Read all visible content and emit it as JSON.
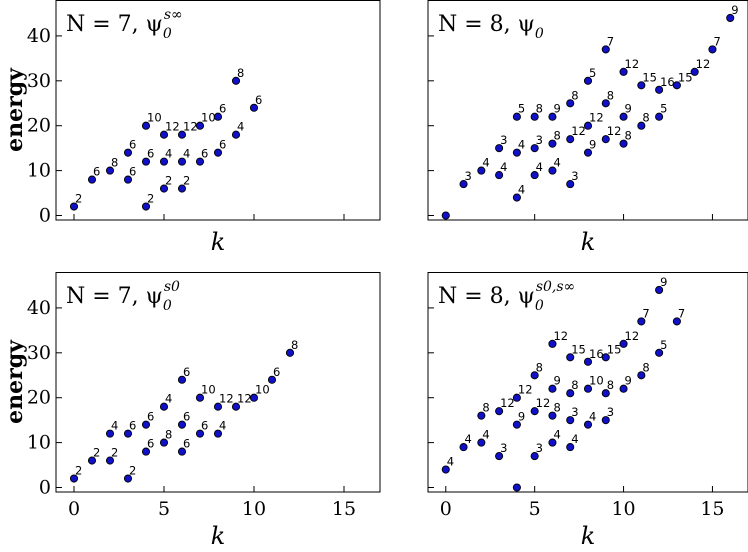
{
  "chart_data": [
    {
      "type": "scatter",
      "title": "N = 7, ψ0^{s∞}",
      "title_main": "N = 7, ψ",
      "title_sub": "0",
      "title_sup": "s∞",
      "xlabel": "k",
      "ylabel": "energy",
      "xlim": [
        -1,
        17
      ],
      "ylim": [
        -1,
        48
      ],
      "xticks": [],
      "yticks": [
        0,
        10,
        20,
        30,
        40
      ],
      "points": [
        {
          "x": 0,
          "y": 2,
          "label": "2"
        },
        {
          "x": 1,
          "y": 8,
          "label": "6"
        },
        {
          "x": 2,
          "y": 10,
          "label": "8"
        },
        {
          "x": 3,
          "y": 8,
          "label": "6"
        },
        {
          "x": 3,
          "y": 14,
          "label": "6"
        },
        {
          "x": 4,
          "y": 2,
          "label": "2"
        },
        {
          "x": 4,
          "y": 12,
          "label": "6"
        },
        {
          "x": 4,
          "y": 20,
          "label": "10"
        },
        {
          "x": 5,
          "y": 6,
          "label": "2"
        },
        {
          "x": 5,
          "y": 12,
          "label": "4"
        },
        {
          "x": 5,
          "y": 18,
          "label": "12"
        },
        {
          "x": 6,
          "y": 6,
          "label": "2"
        },
        {
          "x": 6,
          "y": 12,
          "label": "4"
        },
        {
          "x": 6,
          "y": 18,
          "label": "12"
        },
        {
          "x": 7,
          "y": 12,
          "label": "6"
        },
        {
          "x": 7,
          "y": 20,
          "label": "10"
        },
        {
          "x": 8,
          "y": 14,
          "label": "6"
        },
        {
          "x": 8,
          "y": 22,
          "label": "6"
        },
        {
          "x": 9,
          "y": 18,
          "label": "4"
        },
        {
          "x": 9,
          "y": 30,
          "label": "8"
        },
        {
          "x": 10,
          "y": 24,
          "label": "6"
        }
      ]
    },
    {
      "type": "scatter",
      "title": "N = 8, ψ0",
      "title_main": "N = 8, ψ",
      "title_sub": "0",
      "title_sup": "",
      "xlabel": "k",
      "ylabel": "",
      "xlim": [
        -1,
        17
      ],
      "ylim": [
        -1,
        48
      ],
      "xticks": [],
      "yticks": [],
      "points": [
        {
          "x": 0,
          "y": 0,
          "label": ""
        },
        {
          "x": 1,
          "y": 7,
          "label": "3"
        },
        {
          "x": 2,
          "y": 10,
          "label": "4"
        },
        {
          "x": 3,
          "y": 9,
          "label": "4"
        },
        {
          "x": 3,
          "y": 15,
          "label": "3"
        },
        {
          "x": 4,
          "y": 4,
          "label": "4"
        },
        {
          "x": 4,
          "y": 14,
          "label": "4"
        },
        {
          "x": 4,
          "y": 22,
          "label": "5"
        },
        {
          "x": 5,
          "y": 9,
          "label": "4"
        },
        {
          "x": 5,
          "y": 15,
          "label": "3"
        },
        {
          "x": 5,
          "y": 22,
          "label": "8"
        },
        {
          "x": 6,
          "y": 10,
          "label": "4"
        },
        {
          "x": 6,
          "y": 16,
          "label": "8"
        },
        {
          "x": 6,
          "y": 22,
          "label": "9"
        },
        {
          "x": 7,
          "y": 7,
          "label": "3"
        },
        {
          "x": 7,
          "y": 17,
          "label": "12"
        },
        {
          "x": 7,
          "y": 25,
          "label": "8"
        },
        {
          "x": 8,
          "y": 14,
          "label": "9"
        },
        {
          "x": 8,
          "y": 20,
          "label": "12"
        },
        {
          "x": 8,
          "y": 30,
          "label": "5"
        },
        {
          "x": 9,
          "y": 17,
          "label": "12"
        },
        {
          "x": 9,
          "y": 25,
          "label": "8"
        },
        {
          "x": 9,
          "y": 37,
          "label": "7"
        },
        {
          "x": 10,
          "y": 16,
          "label": "8"
        },
        {
          "x": 10,
          "y": 22,
          "label": "9"
        },
        {
          "x": 10,
          "y": 32,
          "label": "12"
        },
        {
          "x": 11,
          "y": 20,
          "label": "8"
        },
        {
          "x": 11,
          "y": 29,
          "label": "15"
        },
        {
          "x": 12,
          "y": 22,
          "label": "5"
        },
        {
          "x": 12,
          "y": 28,
          "label": "16"
        },
        {
          "x": 13,
          "y": 29,
          "label": "15"
        },
        {
          "x": 14,
          "y": 32,
          "label": "12"
        },
        {
          "x": 15,
          "y": 37,
          "label": "7"
        },
        {
          "x": 16,
          "y": 44,
          "label": "9"
        }
      ]
    },
    {
      "type": "scatter",
      "title": "N = 7, ψ0^{s0}",
      "title_main": "N = 7, ψ",
      "title_sub": "0",
      "title_sup": "s0",
      "xlabel": "k",
      "ylabel": "energy",
      "xlim": [
        -1,
        17
      ],
      "ylim": [
        -1,
        48
      ],
      "xticks": [
        0,
        5,
        10,
        15
      ],
      "yticks": [
        0,
        10,
        20,
        30,
        40
      ],
      "points": [
        {
          "x": 0,
          "y": 2,
          "label": "2"
        },
        {
          "x": 1,
          "y": 6,
          "label": "2"
        },
        {
          "x": 2,
          "y": 6,
          "label": "2"
        },
        {
          "x": 2,
          "y": 12,
          "label": "4"
        },
        {
          "x": 3,
          "y": 2,
          "label": "2"
        },
        {
          "x": 3,
          "y": 12,
          "label": "6"
        },
        {
          "x": 4,
          "y": 8,
          "label": "6"
        },
        {
          "x": 4,
          "y": 14,
          "label": "6"
        },
        {
          "x": 5,
          "y": 10,
          "label": "8"
        },
        {
          "x": 5,
          "y": 18,
          "label": "4"
        },
        {
          "x": 6,
          "y": 8,
          "label": "6"
        },
        {
          "x": 6,
          "y": 14,
          "label": "6"
        },
        {
          "x": 6,
          "y": 24,
          "label": "6"
        },
        {
          "x": 7,
          "y": 12,
          "label": "6"
        },
        {
          "x": 7,
          "y": 20,
          "label": "10"
        },
        {
          "x": 8,
          "y": 12,
          "label": "4"
        },
        {
          "x": 8,
          "y": 18,
          "label": "12"
        },
        {
          "x": 9,
          "y": 18,
          "label": "12"
        },
        {
          "x": 10,
          "y": 20,
          "label": "10"
        },
        {
          "x": 11,
          "y": 24,
          "label": "6"
        },
        {
          "x": 12,
          "y": 30,
          "label": "8"
        }
      ]
    },
    {
      "type": "scatter",
      "title": "N = 8, ψ0^{s0,s∞}",
      "title_main": "N = 8, ψ",
      "title_sub": "0",
      "title_sup": "s0,s∞",
      "xlabel": "k",
      "ylabel": "",
      "xlim": [
        -1,
        17
      ],
      "ylim": [
        -1,
        48
      ],
      "xticks": [
        0,
        5,
        10,
        15
      ],
      "yticks": [],
      "points": [
        {
          "x": 0,
          "y": 4,
          "label": "4"
        },
        {
          "x": 1,
          "y": 9,
          "label": "4"
        },
        {
          "x": 2,
          "y": 10,
          "label": "4"
        },
        {
          "x": 2,
          "y": 16,
          "label": "8"
        },
        {
          "x": 3,
          "y": 7,
          "label": "3"
        },
        {
          "x": 3,
          "y": 17,
          "label": "12"
        },
        {
          "x": 4,
          "y": 0,
          "label": ""
        },
        {
          "x": 4,
          "y": 14,
          "label": "9"
        },
        {
          "x": 4,
          "y": 20,
          "label": "12"
        },
        {
          "x": 5,
          "y": 7,
          "label": "3"
        },
        {
          "x": 5,
          "y": 17,
          "label": "12"
        },
        {
          "x": 5,
          "y": 25,
          "label": "8"
        },
        {
          "x": 6,
          "y": 10,
          "label": "4"
        },
        {
          "x": 6,
          "y": 16,
          "label": "8"
        },
        {
          "x": 6,
          "y": 22,
          "label": "9"
        },
        {
          "x": 6,
          "y": 32,
          "label": "12"
        },
        {
          "x": 7,
          "y": 9,
          "label": "4"
        },
        {
          "x": 7,
          "y": 15,
          "label": "3"
        },
        {
          "x": 7,
          "y": 21,
          "label": "8"
        },
        {
          "x": 7,
          "y": 29,
          "label": "15"
        },
        {
          "x": 8,
          "y": 14,
          "label": "4"
        },
        {
          "x": 8,
          "y": 22,
          "label": "10"
        },
        {
          "x": 8,
          "y": 28,
          "label": "16"
        },
        {
          "x": 9,
          "y": 15,
          "label": "3"
        },
        {
          "x": 9,
          "y": 21,
          "label": "8"
        },
        {
          "x": 9,
          "y": 29,
          "label": "15"
        },
        {
          "x": 10,
          "y": 22,
          "label": "9"
        },
        {
          "x": 10,
          "y": 32,
          "label": "12"
        },
        {
          "x": 11,
          "y": 25,
          "label": "8"
        },
        {
          "x": 11,
          "y": 37,
          "label": "7"
        },
        {
          "x": 12,
          "y": 30,
          "label": "5"
        },
        {
          "x": 12,
          "y": 44,
          "label": "9"
        },
        {
          "x": 13,
          "y": 37,
          "label": "7"
        }
      ]
    }
  ]
}
